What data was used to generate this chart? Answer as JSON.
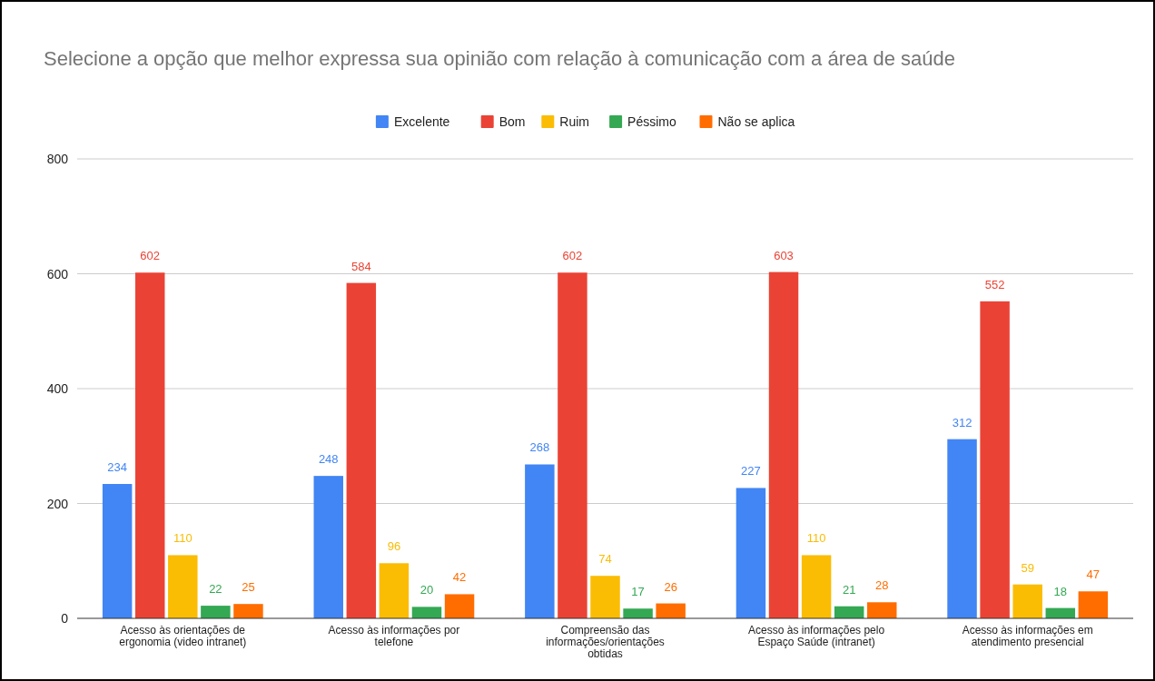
{
  "chart_data": {
    "type": "bar",
    "title": "Selecione a opção que melhor expressa sua opinião com relação à comunicação com a área de saúde",
    "categories": [
      "Acesso às orientações de ergonomia (video intranet)",
      "Acesso às informações por telefone",
      "Compreensão das informações/orientações obtidas",
      "Acesso às informações pelo Espaço Saúde (intranet)",
      "Acesso às informações em atendimento presencial"
    ],
    "series": [
      {
        "name": "Excelente",
        "color": "#4285f4",
        "values": [
          234,
          248,
          268,
          227,
          312
        ]
      },
      {
        "name": "Bom",
        "color": "#ea4335",
        "values": [
          602,
          584,
          602,
          603,
          552
        ]
      },
      {
        "name": "Ruim",
        "color": "#fbbc04",
        "values": [
          110,
          96,
          74,
          110,
          59
        ]
      },
      {
        "name": "Péssimo",
        "color": "#34a853",
        "values": [
          22,
          20,
          17,
          21,
          18
        ]
      },
      {
        "name": "Não se aplica",
        "color": "#ff6d01",
        "values": [
          25,
          42,
          26,
          28,
          47
        ]
      }
    ],
    "ylim": [
      0,
      800
    ],
    "yticks": [
      0,
      200,
      400,
      600,
      800
    ],
    "grid": "y",
    "legend": "top",
    "data_labels": true
  }
}
